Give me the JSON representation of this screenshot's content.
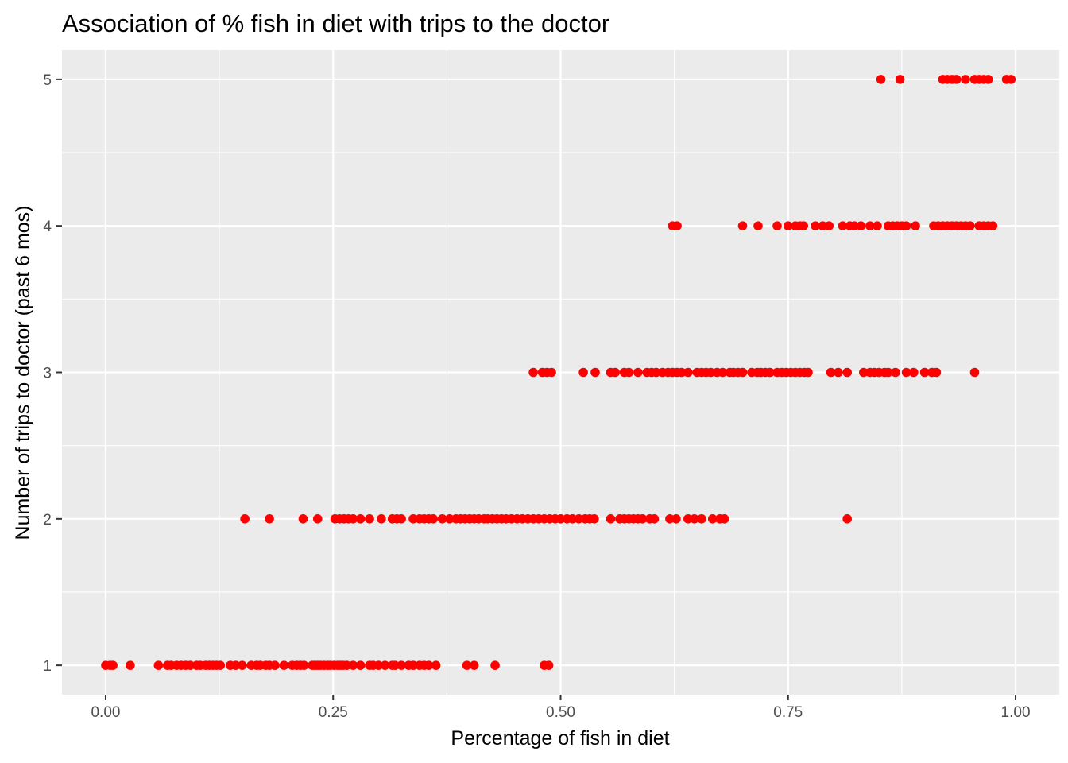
{
  "chart_data": {
    "type": "scatter",
    "title": "Association of % fish in diet with trips to the doctor",
    "xlabel": "Percentage of fish in diet",
    "ylabel": "Number of trips to doctor (past 6 mos)",
    "xlim": [
      -0.048,
      1.048
    ],
    "ylim": [
      0.8,
      5.2
    ],
    "x_ticks": [
      "0.00",
      "0.25",
      "0.50",
      "0.75",
      "1.00"
    ],
    "y_ticks": [
      "1",
      "2",
      "3",
      "4",
      "5"
    ],
    "grid": true,
    "legend": "none",
    "point_color": "#ff0000",
    "panel_color": "#ebebeb",
    "series": [
      {
        "y": 1,
        "x": [
          0.0,
          0.005,
          0.008,
          0.027,
          0.058,
          0.068,
          0.072,
          0.078,
          0.083,
          0.088,
          0.093,
          0.1,
          0.104,
          0.11,
          0.114,
          0.118,
          0.122,
          0.126,
          0.137,
          0.143,
          0.15,
          0.16,
          0.166,
          0.17,
          0.176,
          0.18,
          0.186,
          0.196,
          0.205,
          0.21,
          0.214,
          0.218,
          0.227,
          0.23,
          0.233,
          0.236,
          0.24,
          0.244,
          0.247,
          0.251,
          0.255,
          0.258,
          0.261,
          0.265,
          0.272,
          0.28,
          0.29,
          0.294,
          0.3,
          0.307,
          0.315,
          0.318,
          0.325,
          0.333,
          0.338,
          0.345,
          0.35,
          0.355,
          0.363,
          0.397,
          0.405,
          0.428,
          0.482,
          0.487
        ]
      },
      {
        "y": 2,
        "x": [
          0.153,
          0.18,
          0.217,
          0.233,
          0.252,
          0.257,
          0.262,
          0.267,
          0.272,
          0.28,
          0.29,
          0.303,
          0.315,
          0.32,
          0.325,
          0.338,
          0.345,
          0.35,
          0.355,
          0.36,
          0.37,
          0.378,
          0.385,
          0.39,
          0.395,
          0.4,
          0.405,
          0.41,
          0.416,
          0.42,
          0.425,
          0.43,
          0.435,
          0.44,
          0.446,
          0.452,
          0.458,
          0.464,
          0.47,
          0.476,
          0.482,
          0.488,
          0.494,
          0.5,
          0.507,
          0.513,
          0.52,
          0.527,
          0.532,
          0.537,
          0.555,
          0.565,
          0.57,
          0.575,
          0.58,
          0.585,
          0.59,
          0.598,
          0.603,
          0.62,
          0.627,
          0.64,
          0.647,
          0.655,
          0.667,
          0.675,
          0.68,
          0.815
        ]
      },
      {
        "y": 3,
        "x": [
          0.47,
          0.48,
          0.485,
          0.49,
          0.525,
          0.538,
          0.555,
          0.56,
          0.57,
          0.575,
          0.585,
          0.595,
          0.6,
          0.605,
          0.612,
          0.618,
          0.623,
          0.628,
          0.633,
          0.64,
          0.65,
          0.655,
          0.66,
          0.665,
          0.672,
          0.678,
          0.686,
          0.69,
          0.695,
          0.7,
          0.71,
          0.716,
          0.72,
          0.725,
          0.73,
          0.738,
          0.743,
          0.748,
          0.753,
          0.758,
          0.763,
          0.768,
          0.772,
          0.797,
          0.805,
          0.815,
          0.833,
          0.84,
          0.845,
          0.85,
          0.856,
          0.86,
          0.868,
          0.88,
          0.888,
          0.9,
          0.908,
          0.913,
          0.955
        ]
      },
      {
        "y": 4,
        "x": [
          0.623,
          0.628,
          0.7,
          0.717,
          0.738,
          0.75,
          0.758,
          0.763,
          0.767,
          0.78,
          0.788,
          0.795,
          0.81,
          0.818,
          0.823,
          0.83,
          0.84,
          0.848,
          0.86,
          0.865,
          0.87,
          0.875,
          0.88,
          0.89,
          0.91,
          0.915,
          0.92,
          0.925,
          0.93,
          0.935,
          0.94,
          0.945,
          0.95,
          0.96,
          0.965,
          0.97,
          0.975
        ]
      },
      {
        "y": 5,
        "x": [
          0.852,
          0.873,
          0.92,
          0.925,
          0.93,
          0.935,
          0.945,
          0.955,
          0.96,
          0.965,
          0.97,
          0.99,
          0.995
        ]
      }
    ]
  }
}
